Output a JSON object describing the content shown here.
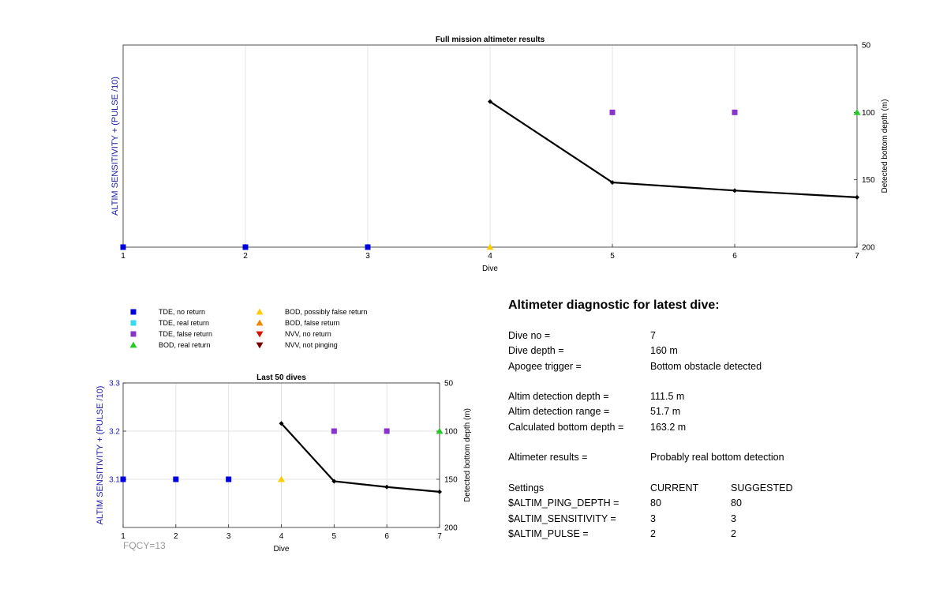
{
  "colors": {
    "tde_no_return": "#0000dd",
    "tde_real_return": "#33ddee",
    "tde_false_return": "#8833cc",
    "bod_real_return": "#22cc22",
    "bod_possibly_false": "#ffcc00",
    "bod_false_return": "#ee8800",
    "nvv_no_return": "#dd1100",
    "nvv_not_pinging": "#770000",
    "axis_label_left": "#1a1aaa",
    "fqcy": "#999999"
  },
  "chart_data": [
    {
      "type": "scatter",
      "title": "Full mission altimeter results",
      "xlabel": "Dive",
      "ylabel_left": "ALTIM SENSITIVITY + (PULSE /10)",
      "ylabel_right": "Detected bottom depth (m)",
      "xlim": [
        1,
        7
      ],
      "x_ticks": [
        "1",
        "2",
        "3",
        "4",
        "5",
        "6",
        "7"
      ],
      "ylim_right": [
        50,
        200
      ],
      "y_ticks_right": [
        "50",
        "100",
        "150",
        "200"
      ],
      "right_axis_reversed": true,
      "grid_x": true,
      "series": [
        {
          "marker": "square",
          "color_key": "tde_no_return",
          "x": [
            1,
            2,
            3
          ],
          "y": [
            200,
            200,
            200
          ]
        },
        {
          "marker": "square",
          "color_key": "tde_false_return",
          "x": [
            5,
            6
          ],
          "y": [
            100,
            100
          ]
        },
        {
          "marker": "triangle-up",
          "color_key": "bod_possibly_false",
          "x": [
            4
          ],
          "y": [
            200
          ]
        },
        {
          "marker": "triangle-up",
          "color_key": "bod_real_return",
          "x": [
            7
          ],
          "y": [
            100
          ]
        },
        {
          "marker": "line",
          "color": "#000000",
          "x": [
            4,
            5,
            6,
            7
          ],
          "y": [
            92,
            152,
            158,
            163
          ]
        }
      ]
    },
    {
      "type": "scatter",
      "title": "Last 50 dives",
      "xlabel": "Dive",
      "ylabel_left": "ALTIM SENSITIVITY + (PULSE /10)",
      "ylabel_right": "Detected bottom depth (m)",
      "xlim": [
        1,
        7
      ],
      "x_ticks": [
        "1",
        "2",
        "3",
        "4",
        "5",
        "6",
        "7"
      ],
      "ylim_left": [
        3.0,
        3.3
      ],
      "y_ticks_left": [
        "3.1",
        "3.2",
        "3.3"
      ],
      "ylim_right": [
        50,
        200
      ],
      "y_ticks_right": [
        "50",
        "100",
        "150",
        "200"
      ],
      "right_axis_reversed": true,
      "grid_x": true,
      "grid_y": true,
      "series": [
        {
          "marker": "square",
          "color_key": "tde_no_return",
          "x": [
            1,
            2,
            3
          ],
          "y": [
            150,
            150,
            150
          ]
        },
        {
          "marker": "square",
          "color_key": "tde_false_return",
          "x": [
            5,
            6
          ],
          "y": [
            100,
            100
          ]
        },
        {
          "marker": "triangle-up",
          "color_key": "bod_possibly_false",
          "x": [
            4
          ],
          "y": [
            150
          ]
        },
        {
          "marker": "triangle-up",
          "color_key": "bod_real_return",
          "x": [
            7
          ],
          "y": [
            100
          ]
        },
        {
          "marker": "line",
          "color": "#000000",
          "x": [
            4,
            5,
            6,
            7
          ],
          "y": [
            92,
            152,
            158,
            163
          ]
        }
      ],
      "annotation": "FQCY=13"
    }
  ],
  "legend": [
    {
      "label": "TDE, no return",
      "marker": "square",
      "color_key": "tde_no_return"
    },
    {
      "label": "TDE, real return",
      "marker": "square",
      "color_key": "tde_real_return"
    },
    {
      "label": "TDE, false return",
      "marker": "square",
      "color_key": "tde_false_return"
    },
    {
      "label": "BOD, real return",
      "marker": "triangle-up",
      "color_key": "bod_real_return"
    },
    {
      "label": "BOD, possibly false return",
      "marker": "triangle-up",
      "color_key": "bod_possibly_false"
    },
    {
      "label": "BOD, false return",
      "marker": "triangle-up",
      "color_key": "bod_false_return"
    },
    {
      "label": "NVV, no return",
      "marker": "triangle-down",
      "color_key": "nvv_no_return"
    },
    {
      "label": "NVV, not pinging",
      "marker": "triangle-down",
      "color_key": "nvv_not_pinging"
    }
  ],
  "diagnostic": {
    "heading": "Altimeter diagnostic for latest dive:",
    "rows_a": [
      {
        "label": "Dive no =",
        "value": "7"
      },
      {
        "label": "Dive depth =",
        "value": "160 m"
      },
      {
        "label": "Apogee trigger =",
        "value": "Bottom obstacle detected"
      }
    ],
    "rows_b": [
      {
        "label": "Altim detection depth =",
        "value": "111.5 m"
      },
      {
        "label": "Altim detection range =",
        "value": "51.7 m"
      },
      {
        "label": "Calculated bottom depth =",
        "value": "163.2 m"
      }
    ],
    "rows_c": [
      {
        "label": "Altimeter results =",
        "value": "Probably real bottom detection"
      }
    ],
    "settings_header": {
      "label": "Settings",
      "current": "CURRENT",
      "suggested": "SUGGESTED"
    },
    "settings": [
      {
        "label": "$ALTIM_PING_DEPTH =",
        "current": "80",
        "suggested": "80"
      },
      {
        "label": "$ALTIM_SENSITIVITY =",
        "current": "3",
        "suggested": "3"
      },
      {
        "label": "$ALTIM_PULSE =",
        "current": "2",
        "suggested": "2"
      }
    ]
  }
}
